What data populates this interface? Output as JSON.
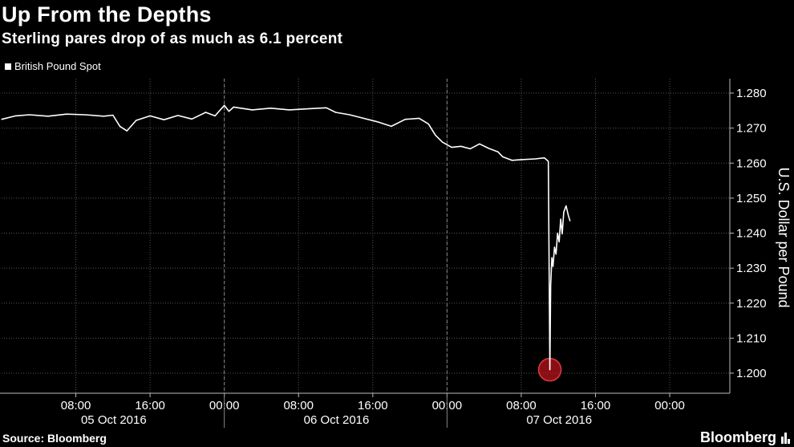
{
  "chart_data": {
    "type": "line",
    "title": "Up From the Depths",
    "subtitle": "Sterling pares drop of as much as 6.1 percent",
    "ylabel": "U.S. Dollar per Pound",
    "ylim": [
      1.195,
      1.283
    ],
    "yticks": [
      "1.200",
      "1.210",
      "1.220",
      "1.230",
      "1.240",
      "1.250",
      "1.260",
      "1.270",
      "1.280"
    ],
    "xticks": [
      "08:00",
      "16:00",
      "00:00",
      "08:00",
      "16:00",
      "00:00",
      "08:00",
      "16:00",
      "00:00"
    ],
    "date_labels": [
      "05 Oct 2016",
      "06 Oct 2016",
      "07 Oct 2016"
    ],
    "grid": true,
    "legend_position": "top-left",
    "series": [
      {
        "name": "British Pound Spot",
        "color": "#ffffff",
        "points": [
          [
            "10-05 00:00",
            1.2725
          ],
          [
            "10-05 01:30",
            1.2735
          ],
          [
            "10-05 03:00",
            1.2738
          ],
          [
            "10-05 05:00",
            1.2734
          ],
          [
            "10-05 07:00",
            1.274
          ],
          [
            "10-05 09:00",
            1.2738
          ],
          [
            "10-05 11:00",
            1.2734
          ],
          [
            "10-05 12:00",
            1.2737
          ],
          [
            "10-05 12:45",
            1.2705
          ],
          [
            "10-05 13:30",
            1.2692
          ],
          [
            "10-05 14:30",
            1.2722
          ],
          [
            "10-05 16:00",
            1.2735
          ],
          [
            "10-05 17:30",
            1.2724
          ],
          [
            "10-05 19:00",
            1.2736
          ],
          [
            "10-05 20:30",
            1.2726
          ],
          [
            "10-05 22:00",
            1.2745
          ],
          [
            "10-05 23:00",
            1.2735
          ],
          [
            "10-06 00:00",
            1.2765
          ],
          [
            "10-06 00:30",
            1.2748
          ],
          [
            "10-06 01:00",
            1.276
          ],
          [
            "10-06 03:00",
            1.2752
          ],
          [
            "10-06 05:00",
            1.2757
          ],
          [
            "10-06 07:00",
            1.2752
          ],
          [
            "10-06 09:00",
            1.2755
          ],
          [
            "10-06 11:00",
            1.2758
          ],
          [
            "10-06 12:00",
            1.2745
          ],
          [
            "10-06 13:30",
            1.2738
          ],
          [
            "10-06 15:00",
            1.2728
          ],
          [
            "10-06 16:30",
            1.2718
          ],
          [
            "10-06 18:00",
            1.2705
          ],
          [
            "10-06 19:30",
            1.2725
          ],
          [
            "10-06 21:00",
            1.2728
          ],
          [
            "10-06 22:00",
            1.2712
          ],
          [
            "10-06 22:45",
            1.268
          ],
          [
            "10-06 23:30",
            1.266
          ],
          [
            "10-07 00:30",
            1.2645
          ],
          [
            "10-07 01:30",
            1.2648
          ],
          [
            "10-07 02:30",
            1.2641
          ],
          [
            "10-07 03:30",
            1.2655
          ],
          [
            "10-07 04:30",
            1.2642
          ],
          [
            "10-07 05:30",
            1.2632
          ],
          [
            "10-07 06:00",
            1.2618
          ],
          [
            "10-07 07:00",
            1.2608
          ],
          [
            "10-07 08:00",
            1.261
          ],
          [
            "10-07 09:30",
            1.2612
          ],
          [
            "10-07 10:30",
            1.2615
          ],
          [
            "10-07 10:55",
            1.2605
          ],
          [
            "10-07 11:05",
            1.201
          ],
          [
            "10-07 11:10",
            1.225
          ],
          [
            "10-07 11:18",
            1.233
          ],
          [
            "10-07 11:25",
            1.2305
          ],
          [
            "10-07 11:35",
            1.236
          ],
          [
            "10-07 11:45",
            1.234
          ],
          [
            "10-07 11:55",
            1.24
          ],
          [
            "10-07 12:05",
            1.2375
          ],
          [
            "10-07 12:15",
            1.244
          ],
          [
            "10-07 12:25",
            1.2398
          ],
          [
            "10-07 12:35",
            1.246
          ],
          [
            "10-07 12:50",
            1.2478
          ],
          [
            "10-07 13:05",
            1.245
          ],
          [
            "10-07 13:15",
            1.2435
          ]
        ]
      }
    ],
    "annotations": [
      {
        "type": "marker",
        "x": "10-07 11:05",
        "y": 1.201,
        "color": "#c4161c"
      }
    ]
  },
  "source": "Source: Bloomberg",
  "brand": "Bloomberg",
  "brand_icon": "bloomberg-bars-icon"
}
